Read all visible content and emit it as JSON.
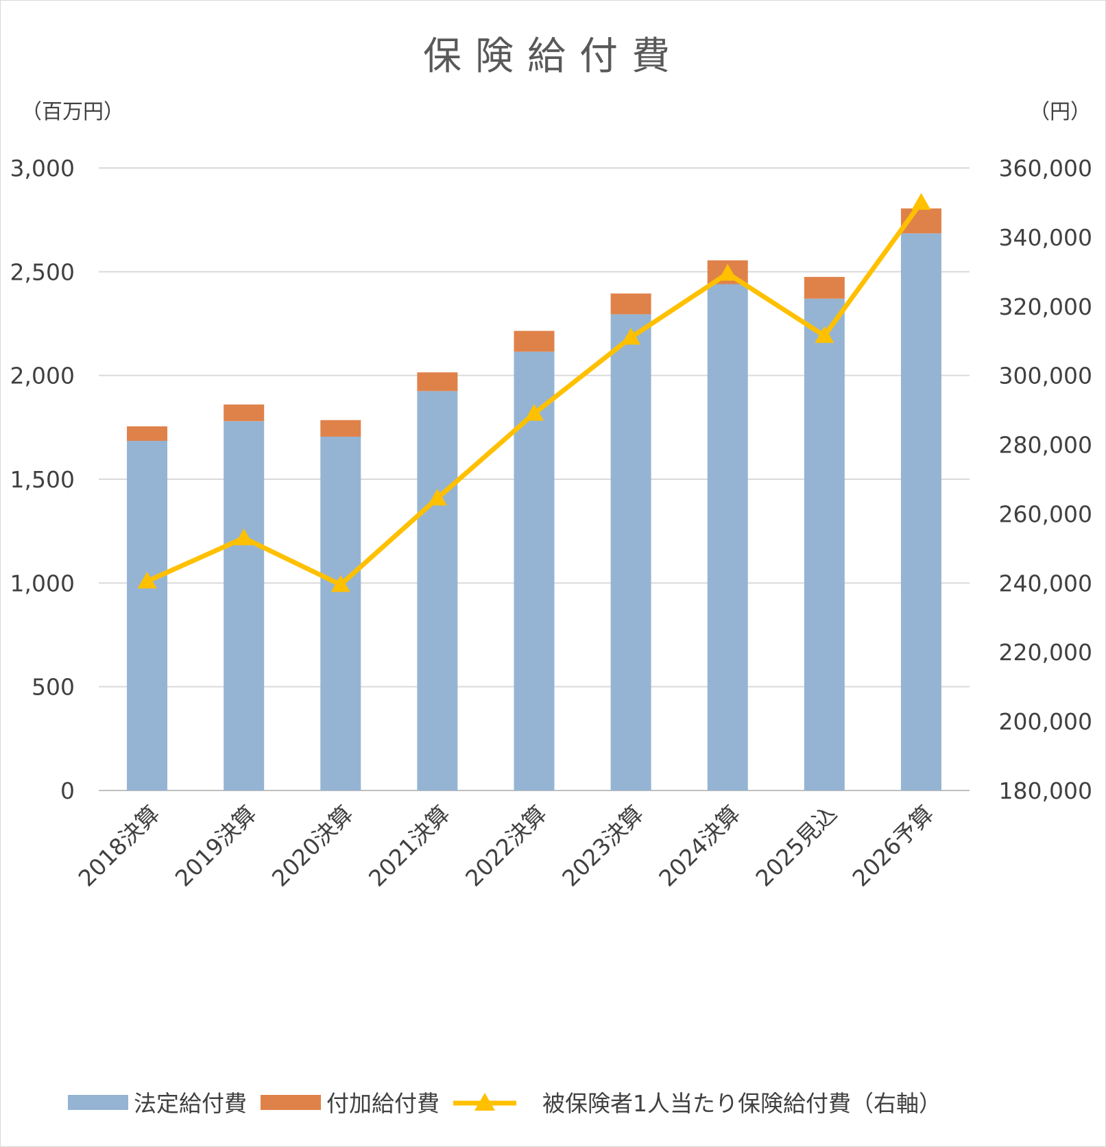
{
  "chart_data": {
    "type": "bar",
    "title": "保険給付費",
    "left_axis_unit": "（百万円）",
    "right_axis_unit": "（円）",
    "categories": [
      "2018決算",
      "2019決算",
      "2020決算",
      "2021決算",
      "2022決算",
      "2023決算",
      "2024決算",
      "2025見込",
      "2026予算"
    ],
    "series": [
      {
        "name": "法定給付費",
        "kind": "bar",
        "stack": "total",
        "axis": "left",
        "color": "#95b4d3",
        "values": [
          1685,
          1780,
          1705,
          1925,
          2115,
          2295,
          2440,
          2370,
          2685
        ]
      },
      {
        "name": "付加給付費",
        "kind": "bar",
        "stack": "total",
        "axis": "left",
        "color": "#df824a",
        "values": [
          70,
          80,
          80,
          90,
          100,
          100,
          115,
          105,
          120
        ]
      },
      {
        "name": "被保険者1人当たり保険給付費（右軸）",
        "kind": "line",
        "axis": "right",
        "color": "#ffc000",
        "marker": "triangle",
        "values": [
          240500,
          253000,
          239500,
          264500,
          289000,
          311000,
          329500,
          311500,
          350000
        ]
      }
    ],
    "left_axis": {
      "min": 0,
      "max": 3000,
      "ticks": [
        "0",
        "500",
        "1,000",
        "1,500",
        "2,000",
        "2,500",
        "3,000"
      ]
    },
    "right_axis": {
      "min": 180000,
      "max": 360000,
      "ticks": [
        "180,000",
        "200,000",
        "220,000",
        "240,000",
        "260,000",
        "280,000",
        "300,000",
        "320,000",
        "340,000",
        "360,000"
      ]
    },
    "grid": true,
    "legend_position": "bottom"
  }
}
